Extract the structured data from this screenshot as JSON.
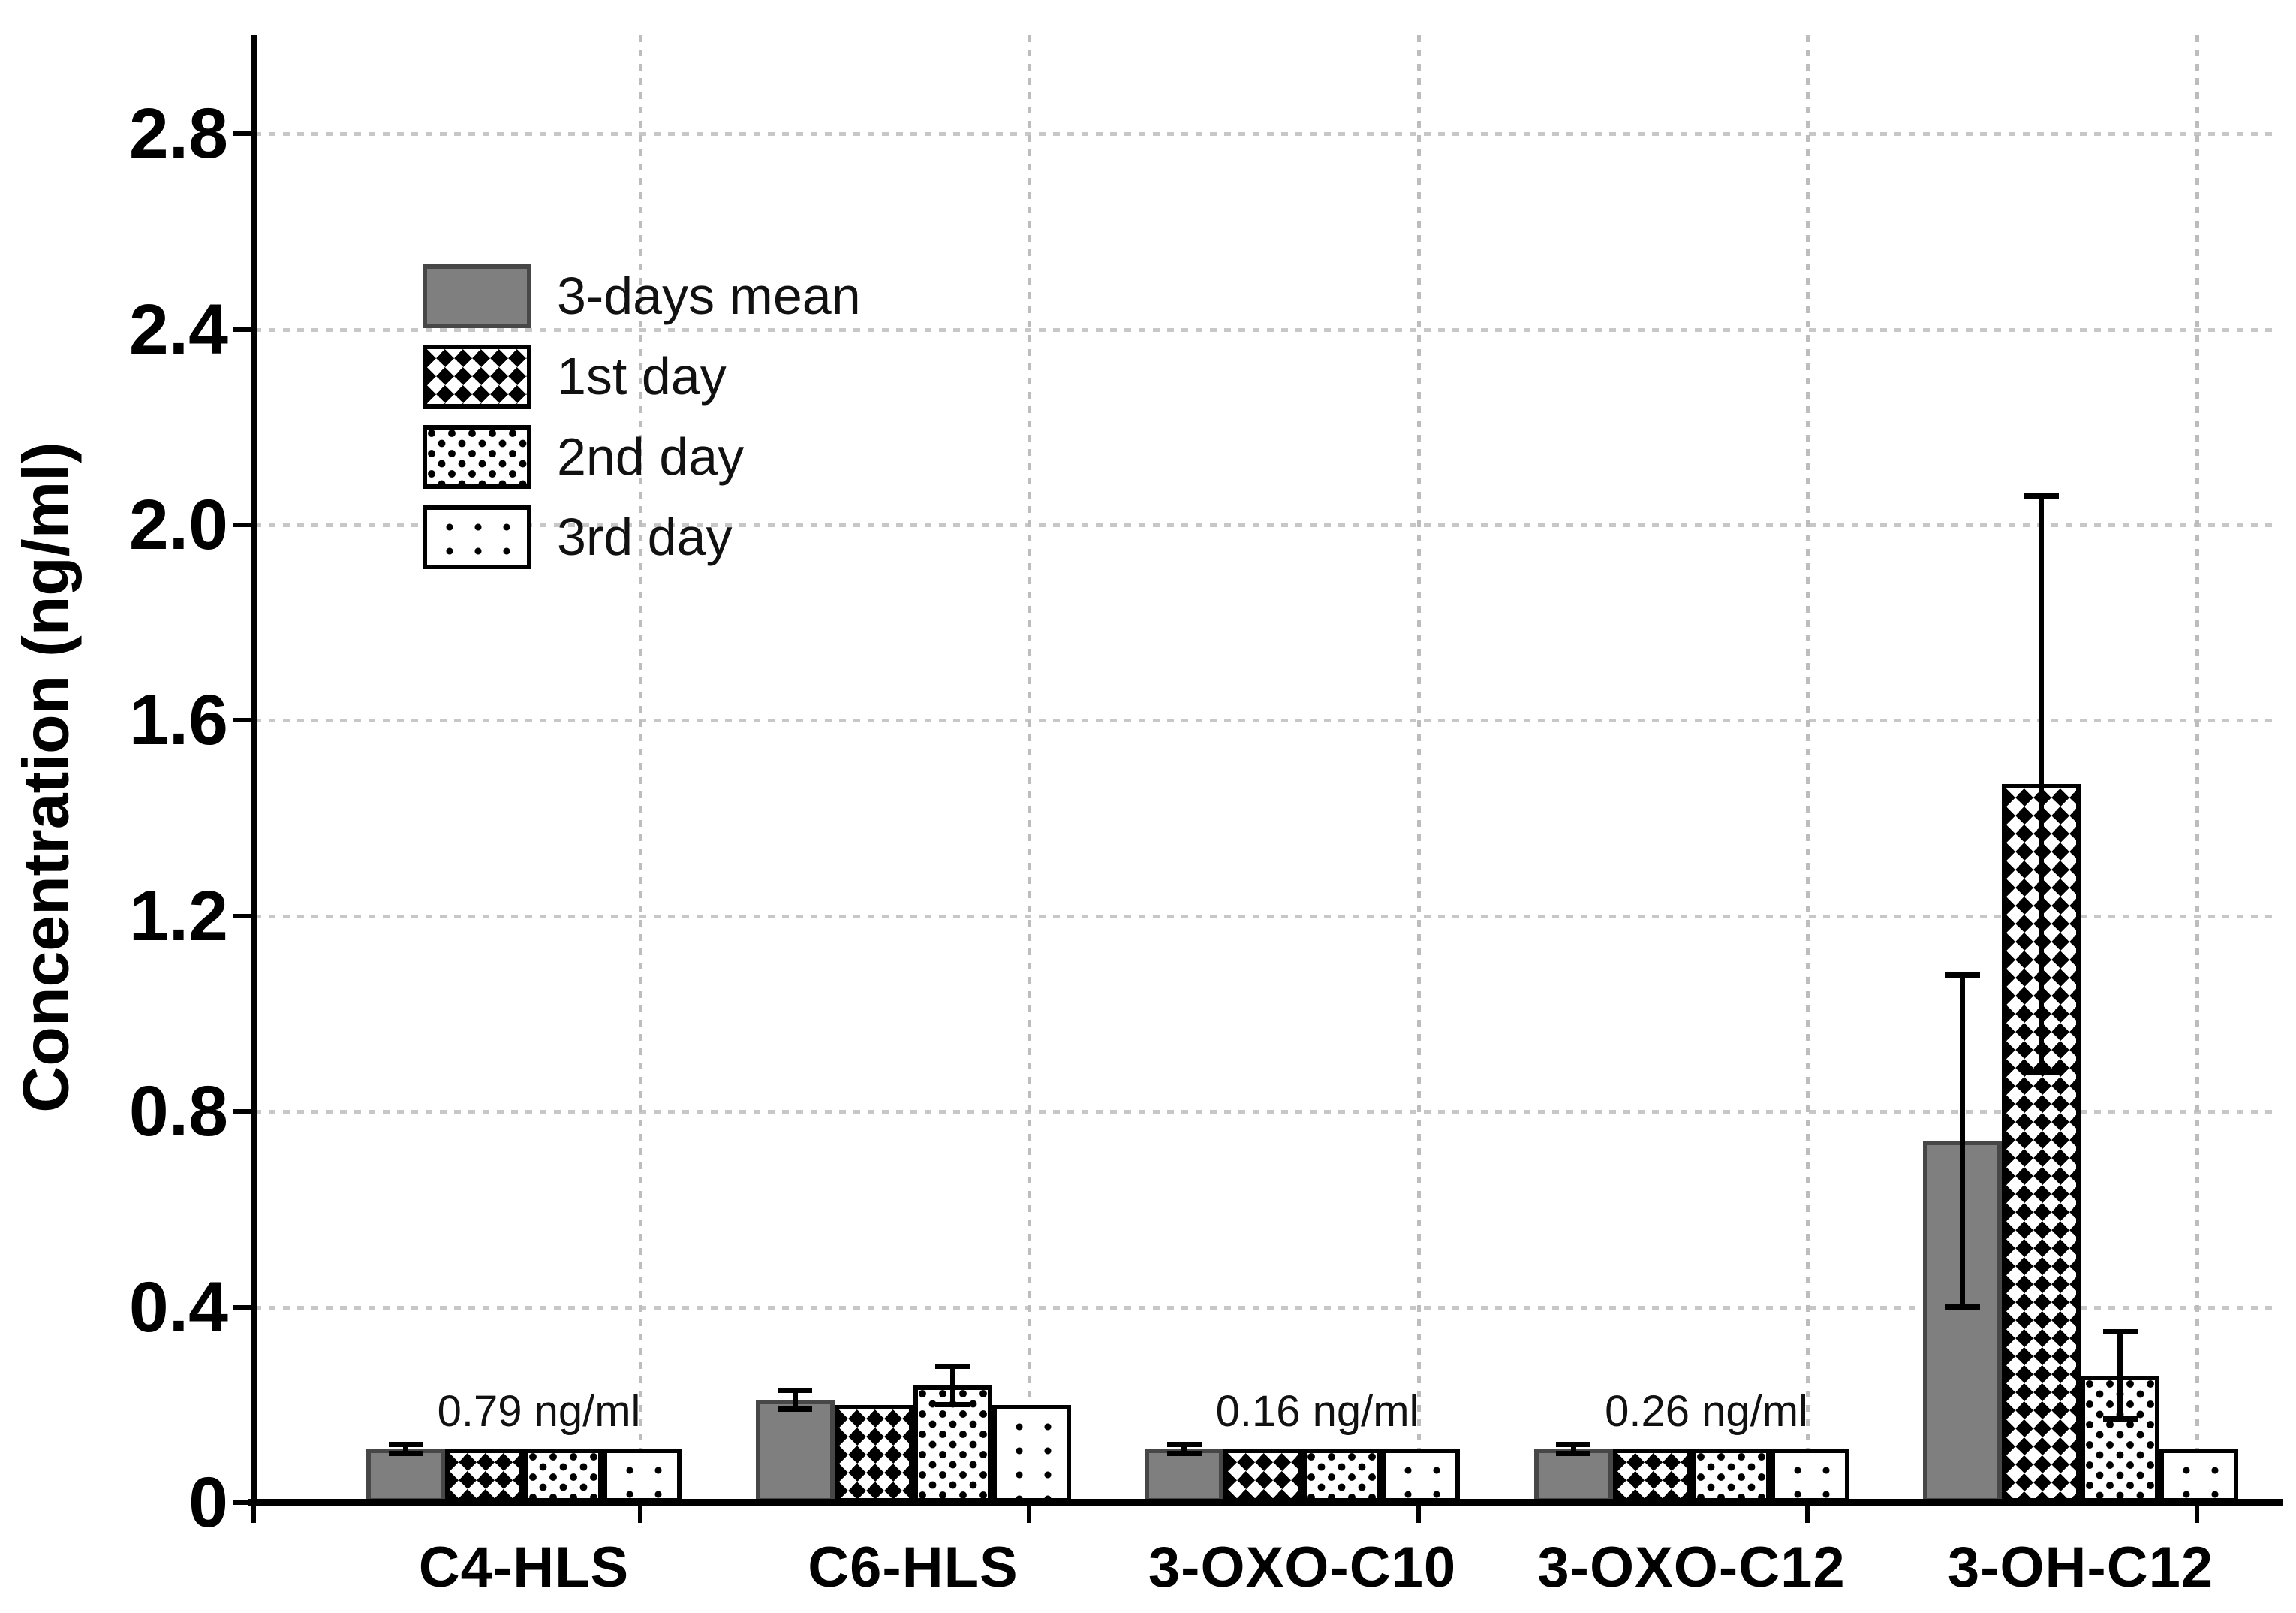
{
  "chart_data": {
    "type": "bar",
    "title": "",
    "xlabel": "",
    "ylabel": "Concentration (ng/ml)",
    "categories": [
      "C4-HLS",
      "C6-HLS",
      "3-OXO-C10",
      "3-OXO-C12",
      "3-OH-C12"
    ],
    "series": [
      {
        "name": "3-days mean",
        "pattern": "solid-gray",
        "values": [
          0.11,
          0.21,
          0.11,
          0.11,
          0.74
        ],
        "errors": [
          0.01,
          0.02,
          0.01,
          0.01,
          0.34
        ]
      },
      {
        "name": "1st day",
        "pattern": "diamond-checkerboard",
        "values": [
          0.11,
          0.2,
          0.11,
          0.11,
          1.47
        ],
        "errors": [
          0,
          0,
          0,
          0,
          0.59
        ]
      },
      {
        "name": "2nd day",
        "pattern": "dense-dots",
        "values": [
          0.11,
          0.24,
          0.11,
          0.11,
          0.26
        ],
        "errors": [
          0,
          0.04,
          0,
          0,
          0.09
        ]
      },
      {
        "name": "3rd day",
        "pattern": "sparse-dots",
        "values": [
          0.11,
          0.2,
          0.11,
          0.11,
          0.11
        ],
        "errors": [
          0,
          0,
          0,
          0,
          0
        ]
      }
    ],
    "annotations": [
      {
        "category": "C4-HLS",
        "text": "0.79 ng/ml"
      },
      {
        "category": "3-OXO-C10",
        "text": "0.16 ng/ml"
      },
      {
        "category": "3-OXO-C12",
        "text": "0.26 ng/ml"
      }
    ],
    "yticks": [
      0,
      0.4,
      0.8,
      1.2,
      1.6,
      2.0,
      2.4,
      2.8
    ],
    "ytick_labels": [
      "0",
      "0.4",
      "0.8",
      "1.2",
      "1.6",
      "2.0",
      "2.4",
      "2.8"
    ],
    "ylim": [
      0,
      3.0
    ],
    "grid": true,
    "legend_position": "upper-left-inside",
    "colors": {
      "bar_fill_gray": "#7f7f7f",
      "bar_border_gray": "#474747",
      "pattern_ink": "#000000",
      "gridline": "#c7c7c7",
      "axis": "#000000",
      "text": "#000000",
      "background": "#ffffff"
    }
  }
}
